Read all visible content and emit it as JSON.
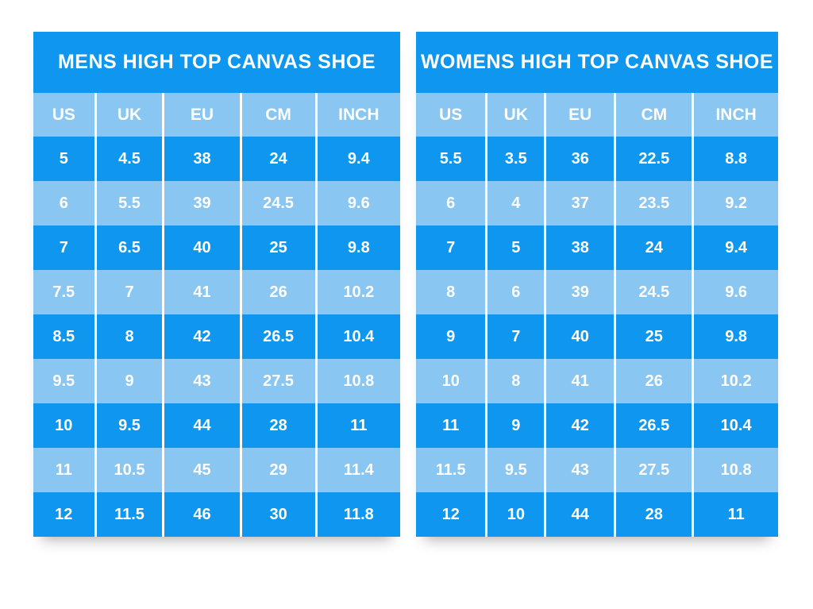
{
  "colors": {
    "primary_blue": "#0f96ee",
    "light_blue": "#89c6f1",
    "text_white": "#ffffff",
    "background": "#ffffff"
  },
  "chart_data": [
    {
      "type": "table",
      "title": "MENS HIGH TOP CANVAS SHOE",
      "columns": [
        "US",
        "UK",
        "EU",
        "CM",
        "INCH"
      ],
      "rows": [
        [
          "5",
          "4.5",
          "38",
          "24",
          "9.4"
        ],
        [
          "6",
          "5.5",
          "39",
          "24.5",
          "9.6"
        ],
        [
          "7",
          "6.5",
          "40",
          "25",
          "9.8"
        ],
        [
          "7.5",
          "7",
          "41",
          "26",
          "10.2"
        ],
        [
          "8.5",
          "8",
          "42",
          "26.5",
          "10.4"
        ],
        [
          "9.5",
          "9",
          "43",
          "27.5",
          "10.8"
        ],
        [
          "10",
          "9.5",
          "44",
          "28",
          "11"
        ],
        [
          "11",
          "10.5",
          "45",
          "29",
          "11.4"
        ],
        [
          "12",
          "11.5",
          "46",
          "30",
          "11.8"
        ]
      ],
      "layout_hints": {
        "row_striping": "alternating dark/light blue starting dark",
        "header_band": "light blue",
        "title_band": "dark blue"
      }
    },
    {
      "type": "table",
      "title": "WOMENS HIGH TOP CANVAS SHOE",
      "columns": [
        "US",
        "UK",
        "EU",
        "CM",
        "INCH"
      ],
      "rows": [
        [
          "5.5",
          "3.5",
          "36",
          "22.5",
          "8.8"
        ],
        [
          "6",
          "4",
          "37",
          "23.5",
          "9.2"
        ],
        [
          "7",
          "5",
          "38",
          "24",
          "9.4"
        ],
        [
          "8",
          "6",
          "39",
          "24.5",
          "9.6"
        ],
        [
          "9",
          "7",
          "40",
          "25",
          "9.8"
        ],
        [
          "10",
          "8",
          "41",
          "26",
          "10.2"
        ],
        [
          "11",
          "9",
          "42",
          "26.5",
          "10.4"
        ],
        [
          "11.5",
          "9.5",
          "43",
          "27.5",
          "10.8"
        ],
        [
          "12",
          "10",
          "44",
          "28",
          "11"
        ]
      ],
      "layout_hints": {
        "row_striping": "alternating dark/light blue starting dark",
        "header_band": "light blue",
        "title_band": "dark blue"
      }
    }
  ]
}
